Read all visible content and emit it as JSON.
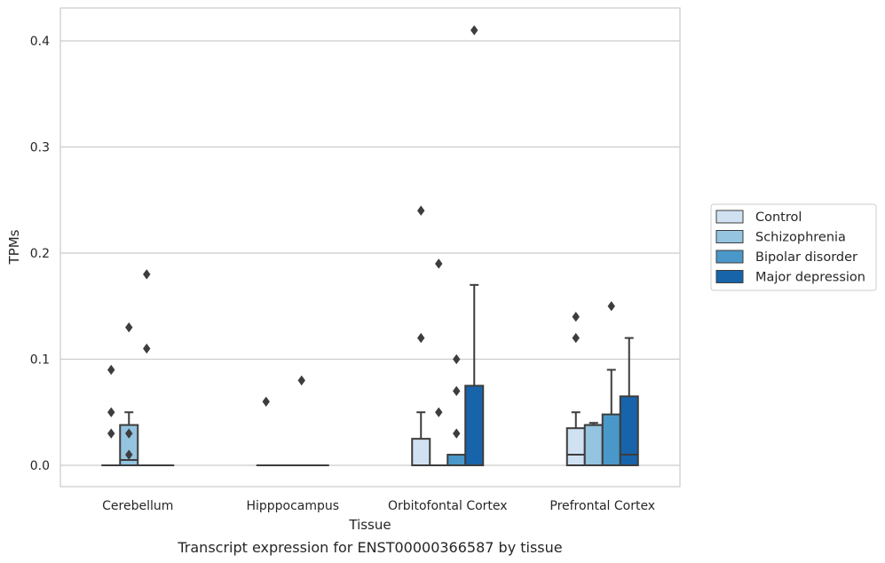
{
  "chart_data": {
    "type": "box",
    "title": "Transcript expression for ENST00000366587 by tissue",
    "xlabel": "Tissue",
    "ylabel": "TPMs",
    "ylim": [
      -0.02,
      0.43
    ],
    "yticks": [
      0.0,
      0.1,
      0.2,
      0.3,
      0.4
    ],
    "ytick_labels": [
      "0.0",
      "0.1",
      "0.2",
      "0.3",
      "0.4"
    ],
    "grid": true,
    "legend_position": "right",
    "categories": [
      "Cerebellum",
      "Hipppocampus",
      "Orbitofontal Cortex",
      "Prefrontal Cortex"
    ],
    "series": [
      {
        "name": "Control",
        "color": "#d0e1f2",
        "boxes": [
          {
            "q1": 0,
            "median": 0,
            "q3": 0,
            "whisker_low": 0,
            "whisker_high": 0,
            "outliers": [
              0.09,
              0.05,
              0.03
            ]
          },
          {
            "q1": 0,
            "median": 0,
            "q3": 0,
            "whisker_low": 0,
            "whisker_high": 0,
            "outliers": [
              0.06
            ]
          },
          {
            "q1": 0,
            "median": 0,
            "q3": 0.025,
            "whisker_low": 0,
            "whisker_high": 0.05,
            "outliers": [
              0.24,
              0.12
            ]
          },
          {
            "q1": 0,
            "median": 0.01,
            "q3": 0.035,
            "whisker_low": 0,
            "whisker_high": 0.05,
            "outliers": [
              0.14,
              0.12
            ]
          }
        ]
      },
      {
        "name": "Schizophrenia",
        "color": "#94c4df",
        "boxes": [
          {
            "q1": 0,
            "median": 0.005,
            "q3": 0.038,
            "whisker_low": 0,
            "whisker_high": 0.05,
            "outliers": [
              0.13,
              0.03,
              0.01
            ]
          },
          {
            "q1": 0,
            "median": 0,
            "q3": 0,
            "whisker_low": 0,
            "whisker_high": 0,
            "outliers": []
          },
          {
            "q1": 0,
            "median": 0,
            "q3": 0,
            "whisker_low": 0,
            "whisker_high": 0,
            "outliers": [
              0.19,
              0.05
            ]
          },
          {
            "q1": 0,
            "median": 0.038,
            "q3": 0.038,
            "whisker_low": 0,
            "whisker_high": 0.04,
            "outliers": []
          }
        ]
      },
      {
        "name": "Bipolar disorder",
        "color": "#4a98c9",
        "boxes": [
          {
            "q1": 0,
            "median": 0,
            "q3": 0,
            "whisker_low": 0,
            "whisker_high": 0,
            "outliers": [
              0.18,
              0.11
            ]
          },
          {
            "q1": 0,
            "median": 0,
            "q3": 0,
            "whisker_low": 0,
            "whisker_high": 0,
            "outliers": [
              0.08
            ]
          },
          {
            "q1": 0,
            "median": 0,
            "q3": 0.01,
            "whisker_low": 0,
            "whisker_high": 0.01,
            "outliers": [
              0.1,
              0.07,
              0.03
            ]
          },
          {
            "q1": 0,
            "median": 0,
            "q3": 0.048,
            "whisker_low": 0,
            "whisker_high": 0.09,
            "outliers": [
              0.15
            ]
          }
        ]
      },
      {
        "name": "Major depression",
        "color": "#1764ab",
        "boxes": [
          {
            "q1": 0,
            "median": 0,
            "q3": 0,
            "whisker_low": 0,
            "whisker_high": 0,
            "outliers": []
          },
          {
            "q1": 0,
            "median": 0,
            "q3": 0,
            "whisker_low": 0,
            "whisker_high": 0,
            "outliers": []
          },
          {
            "q1": 0,
            "median": 0,
            "q3": 0.075,
            "whisker_low": 0,
            "whisker_high": 0.17,
            "outliers": [
              0.41
            ]
          },
          {
            "q1": 0,
            "median": 0.01,
            "q3": 0.065,
            "whisker_low": 0,
            "whisker_high": 0.12,
            "outliers": []
          }
        ]
      }
    ]
  }
}
